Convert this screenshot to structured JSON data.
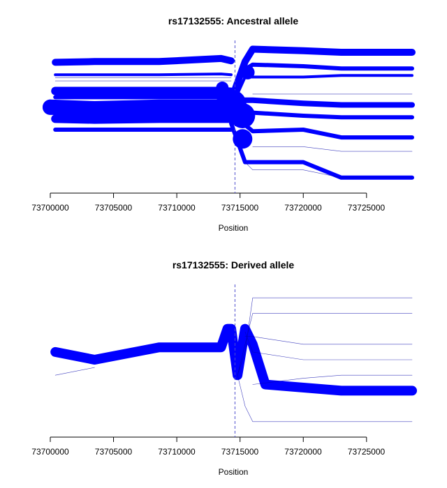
{
  "colors": {
    "line": "#0000ff",
    "thin": "#0000aa",
    "axis": "#000000",
    "marker": "#4d4dcc"
  },
  "chart_data": [
    {
      "type": "line",
      "subtype": "haplotype-bifurcation",
      "title": "rs17132555: Ancestral allele",
      "xlabel": "Position",
      "ylabel": "",
      "xlim": [
        73700000,
        73728600
      ],
      "xticks": [
        "73700000",
        "73705000",
        "73710000",
        "73715000",
        "73720000",
        "73725000"
      ],
      "xtick_values": [
        73700000,
        73705000,
        73710000,
        73715000,
        73720000,
        73725000
      ],
      "core_position": 73714600,
      "ylim": [
        0,
        1
      ],
      "grid": false,
      "legend": "none",
      "series": [
        {
          "x": [
            73700400,
            73703500,
            73708600,
            73713500,
            73714300
          ],
          "y": [
            0.845,
            0.85,
            0.85,
            0.87,
            0.855
          ],
          "weight": 5
        },
        {
          "x": [
            73700400,
            73703500,
            73708600,
            73713500,
            73714300
          ],
          "y": [
            0.765,
            0.765,
            0.765,
            0.77,
            0.765
          ],
          "weight": 2
        },
        {
          "x": [
            73700400,
            73703500,
            73708600,
            73713500,
            73714300
          ],
          "y": [
            0.745,
            0.745,
            0.745,
            0.745,
            0.745
          ],
          "weight": 1
        },
        {
          "x": [
            73700400,
            73703500,
            73708600,
            73713500,
            73714300
          ],
          "y": [
            0.725,
            0.725,
            0.725,
            0.725,
            0.725
          ],
          "weight": 1
        },
        {
          "x": [
            73700400,
            73703500,
            73708600,
            73713500,
            73714300
          ],
          "y": [
            0.66,
            0.66,
            0.66,
            0.66,
            0.655
          ],
          "weight": 6
        },
        {
          "x": [
            73700400,
            73703500,
            73708600,
            73713500,
            73714300
          ],
          "y": [
            0.62,
            0.62,
            0.62,
            0.62,
            0.625
          ],
          "weight": 3
        },
        {
          "x": [
            73700000,
            73703500,
            73708600,
            73713500,
            73714300
          ],
          "y": [
            0.555,
            0.545,
            0.555,
            0.555,
            0.555
          ],
          "weight": 11
        },
        {
          "x": [
            73700400,
            73703500,
            73708600,
            73713500,
            73714300
          ],
          "y": [
            0.48,
            0.475,
            0.48,
            0.48,
            0.48
          ],
          "weight": 6
        },
        {
          "x": [
            73700400,
            73703500,
            73708600,
            73713500,
            73714300
          ],
          "y": [
            0.41,
            0.41,
            0.41,
            0.41,
            0.41
          ],
          "weight": 3
        },
        {
          "x": [
            73714300,
            73715400,
            73716000,
            73720000,
            73723000,
            73728600
          ],
          "y": [
            0.6,
            0.85,
            0.93,
            0.92,
            0.91,
            0.91
          ],
          "weight": 5
        },
        {
          "x": [
            73714300,
            73715400,
            73716000,
            73720000,
            73723000,
            73728600
          ],
          "y": [
            0.55,
            0.75,
            0.75,
            0.75,
            0.76,
            0.76
          ],
          "weight": 2
        },
        {
          "x": [
            73715400,
            73716000,
            73720000,
            73723000,
            73728600
          ],
          "y": [
            0.8,
            0.83,
            0.82,
            0.805,
            0.805
          ],
          "weight": 3
        },
        {
          "x": [
            73715400,
            73716000,
            73720000,
            73723000,
            73728600
          ],
          "y": [
            0.6,
            0.6,
            0.58,
            0.57,
            0.57
          ],
          "weight": 4
        },
        {
          "x": [
            73715400,
            73716000,
            73720000,
            73723000,
            73728600
          ],
          "y": [
            0.5,
            0.52,
            0.5,
            0.49,
            0.49
          ],
          "weight": 3
        },
        {
          "x": [
            73715400,
            73716000,
            73720000,
            73723000,
            73728600
          ],
          "y": [
            0.44,
            0.4,
            0.41,
            0.36,
            0.36
          ],
          "weight": 3
        },
        {
          "x": [
            73714300,
            73715400,
            73716000,
            73720000,
            73723000,
            73728600
          ],
          "y": [
            0.45,
            0.2,
            0.2,
            0.2,
            0.1,
            0.1
          ],
          "weight": 3
        },
        {
          "x": [
            73715400,
            73716000,
            73720000,
            73723000,
            73728600
          ],
          "y": [
            0.2,
            0.15,
            0.15,
            0.1,
            0.1
          ],
          "weight": 1
        },
        {
          "x": [
            73716000,
            73720000,
            73723000,
            73728600
          ],
          "y": [
            0.3,
            0.3,
            0.27,
            0.27
          ],
          "weight": 1
        },
        {
          "x": [
            73716000,
            73720000,
            73723000,
            73728600
          ],
          "y": [
            0.64,
            0.64,
            0.64,
            0.64
          ],
          "weight": 1
        }
      ]
    },
    {
      "type": "line",
      "subtype": "haplotype-bifurcation",
      "title": "rs17132555: Derived allele",
      "xlabel": "Position",
      "ylabel": "",
      "xlim": [
        73700000,
        73728600
      ],
      "xticks": [
        "73700000",
        "73705000",
        "73710000",
        "73715000",
        "73720000",
        "73725000"
      ],
      "xtick_values": [
        73700000,
        73705000,
        73710000,
        73715000,
        73720000,
        73725000
      ],
      "core_position": 73714600,
      "ylim": [
        0,
        1
      ],
      "grid": false,
      "legend": "none",
      "series": [
        {
          "x": [
            73700400,
            73703500,
            73708600,
            73713500,
            73714000,
            73714300,
            73714800,
            73715400,
            73716000,
            73717000,
            73723000,
            73728600
          ],
          "y": [
            0.55,
            0.5,
            0.58,
            0.58,
            0.7,
            0.7,
            0.4,
            0.7,
            0.6,
            0.34,
            0.3,
            0.3
          ],
          "weight": 7
        },
        {
          "x": [
            73714800,
            73715400,
            73716000,
            73720000,
            73723000,
            73728600
          ],
          "y": [
            0.4,
            0.6,
            0.8,
            0.8,
            0.8,
            0.8
          ],
          "weight": 1
        },
        {
          "x": [
            73714800,
            73715400,
            73716000,
            73720000,
            73723000,
            73728600
          ],
          "y": [
            0.4,
            0.55,
            0.9,
            0.9,
            0.9,
            0.9
          ],
          "weight": 1
        },
        {
          "x": [
            73714800,
            73715400,
            73716000,
            73720000,
            73723000,
            73728600
          ],
          "y": [
            0.4,
            0.2,
            0.1,
            0.1,
            0.1,
            0.1
          ],
          "weight": 1
        },
        {
          "x": [
            73715400,
            73716000,
            73720000,
            73723000,
            73728600
          ],
          "y": [
            0.65,
            0.65,
            0.6,
            0.6,
            0.6
          ],
          "weight": 1
        },
        {
          "x": [
            73715400,
            73716000,
            73720000,
            73723000,
            73728600
          ],
          "y": [
            0.68,
            0.55,
            0.5,
            0.5,
            0.5
          ],
          "weight": 1
        },
        {
          "x": [
            73716000,
            73720000,
            73723000,
            73728600
          ],
          "y": [
            0.34,
            0.38,
            0.4,
            0.4
          ],
          "weight": 1
        },
        {
          "x": [
            73700400,
            73703500
          ],
          "y": [
            0.4,
            0.45
          ],
          "weight": 1
        }
      ]
    }
  ]
}
